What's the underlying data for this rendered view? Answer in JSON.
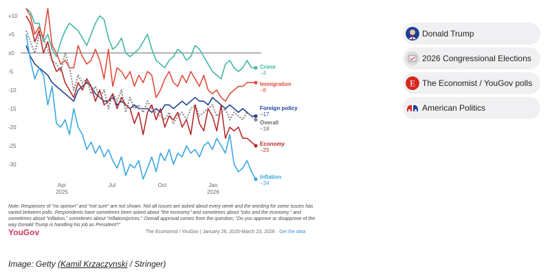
{
  "chart_data": {
    "type": "line",
    "x_tick_labels": [
      "Apr\n2025",
      "Jul",
      "Oct",
      "Jan\n2026"
    ],
    "y_ticks": [
      "+10",
      "+5",
      "±0",
      "-5",
      "-10",
      "-15",
      "-20",
      "-25",
      "-30"
    ],
    "ylim": [
      -35,
      12
    ],
    "grid": false,
    "series": [
      {
        "name": "Crime",
        "label_value": "−4",
        "color": "#3fb8a3",
        "dashed": false,
        "values": [
          12,
          11,
          8,
          8,
          3,
          5,
          1,
          -1,
          3,
          6,
          8,
          7,
          6,
          4,
          2,
          5,
          8,
          10,
          9,
          4,
          1,
          2,
          4,
          0,
          -1,
          0,
          1,
          3,
          5,
          1,
          -2,
          -3,
          -4,
          -2,
          -1,
          1,
          0,
          -2,
          -1,
          2,
          1,
          -1,
          -3,
          -5,
          -6,
          -7,
          -3,
          -2,
          -4,
          -5,
          -4,
          -2,
          -4,
          -4
        ]
      },
      {
        "name": "Immigration",
        "label_value": "−8",
        "color": "#e04b3b",
        "dashed": false,
        "values": [
          12,
          10,
          5,
          7,
          4,
          12,
          2,
          0,
          -3,
          -2,
          -4,
          -4,
          2,
          -1,
          -3,
          -2,
          1,
          -2,
          -7,
          1,
          -9,
          -4,
          -5,
          -7,
          -5,
          -9,
          -6,
          -8,
          -5,
          -6,
          -12,
          -10,
          -7,
          -5,
          -8,
          -9,
          -6,
          -8,
          -5,
          -7,
          -9,
          -6,
          -10,
          -11,
          -10,
          -12,
          -13,
          -11,
          -10,
          -9,
          -9,
          -8,
          -8,
          -8
        ]
      },
      {
        "name": "Foreign policy",
        "label_value": "−17",
        "color": "#1d3f97",
        "dashed": false,
        "values": [
          2,
          -1,
          -3,
          -4,
          -5,
          -6,
          -8,
          -9,
          -10,
          -11,
          -12,
          -13,
          -10,
          -9,
          -8,
          -9,
          -11,
          -12,
          -13,
          -13,
          -12,
          -14,
          -13,
          -14,
          -15,
          -14,
          -15,
          -15,
          -15,
          -16,
          -15,
          -16,
          -14,
          -14,
          -15,
          -14,
          -13,
          -14,
          -13,
          -12,
          -13,
          -13,
          -14,
          -12,
          -13,
          -14,
          -15,
          -14,
          -15,
          -16,
          -15,
          -16,
          -17,
          -17
        ]
      },
      {
        "name": "Overall",
        "label_value": "−18",
        "color": "#8a8a8a",
        "dashed": true,
        "values": [
          6,
          3,
          0,
          5,
          4,
          1,
          -2,
          -3,
          -5,
          0,
          -4,
          -10,
          -6,
          -8,
          -7,
          -11,
          -9,
          -12,
          -10,
          -15,
          -11,
          -13,
          -10,
          -16,
          -12,
          -15,
          -14,
          -16,
          -13,
          -15,
          -16,
          -17,
          -18,
          -16,
          -19,
          -17,
          -16,
          -18,
          -15,
          -14,
          -17,
          -16,
          -15,
          -14,
          -17,
          -16,
          -15,
          -18,
          -16,
          -17,
          -18,
          -16,
          -17,
          -18
        ]
      },
      {
        "name": "Economy",
        "label_value": "−25",
        "color": "#b52828",
        "dashed": false,
        "values": [
          10,
          8,
          3,
          6,
          0,
          3,
          -2,
          -5,
          -4,
          -8,
          -10,
          -12,
          -8,
          -10,
          -7,
          -9,
          -13,
          -10,
          -14,
          -13,
          -11,
          -15,
          -12,
          -14,
          -15,
          -19,
          -16,
          -22,
          -16,
          -14,
          -18,
          -15,
          -20,
          -17,
          -18,
          -16,
          -20,
          -18,
          -22,
          -14,
          -19,
          -21,
          -15,
          -17,
          -21,
          -14,
          -23,
          -20,
          -21,
          -20,
          -23,
          -23,
          -24,
          -25
        ]
      },
      {
        "name": "Inflation",
        "label_value": "−34",
        "color": "#38a6e2",
        "dashed": false,
        "values": [
          5,
          -2,
          -7,
          -4,
          -6,
          -14,
          -9,
          -19,
          -20,
          -18,
          -22,
          -15,
          -20,
          -22,
          -26,
          -24,
          -27,
          -25,
          -28,
          -26,
          -29,
          -31,
          -28,
          -33,
          -30,
          -31,
          -29,
          -34,
          -31,
          -28,
          -32,
          -27,
          -29,
          -26,
          -30,
          -27,
          -28,
          -25,
          -27,
          -26,
          -28,
          -25,
          -24,
          -26,
          -23,
          -25,
          -27,
          -22,
          -30,
          -32,
          -31,
          -29,
          -32,
          -34
        ]
      }
    ]
  },
  "note": "Note: Responses of \"no opinion\" and \"not sure\" are not shown. Not all issues are asked about every week and the wording for some issues has varied between polls. Respondents have sometimes been asked about \"the economy\" and sometimes about \"jobs and the economy,\" and sometimes about \"inflation,\" sometimes about \"inflation/prices.\" Overall approval comes from the question, \"Do you approve or disapprove of the way Donald Trump is handling his job as President?\"",
  "brand": "YouGov",
  "source": "The Economist / YouGov | January 26, 2025-March 23, 2026 ·",
  "source_link": "Get the data",
  "caption_prefix": "Image: Getty (",
  "caption_credit": "Kamil Krzaczynski",
  "caption_suffix": " / Stringer)",
  "tags": [
    {
      "label": "Donald Trump",
      "icon": "trump-portrait-icon",
      "color": "#1d3f97"
    },
    {
      "label": "2026 Congressional Elections",
      "icon": "ballot-icon",
      "color": "#d9d9d9"
    },
    {
      "label": "The Economist / YouGov polls",
      "icon": "economist-e-icon",
      "color": "#d6281e"
    },
    {
      "label": "American Politics",
      "icon": "elephant-donkey-icon",
      "color": "#d6281e"
    }
  ]
}
